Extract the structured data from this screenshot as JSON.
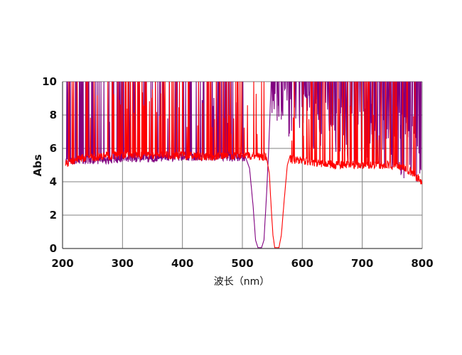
{
  "chart_data": {
    "type": "line",
    "xlabel": "波长（nm）",
    "ylabel": "Abs",
    "xlim": [
      200,
      800
    ],
    "ylim": [
      0,
      10
    ],
    "x_ticks": [
      "200",
      "300",
      "400",
      "500",
      "600",
      "700",
      "800"
    ],
    "y_ticks": [
      "0",
      "2",
      "4",
      "6",
      "8",
      "10"
    ],
    "grid": true,
    "series": [
      {
        "color": "#800080",
        "baseline": [
          [
            205,
            5.3
          ],
          [
            260,
            5.3
          ],
          [
            330,
            5.4
          ],
          [
            400,
            5.5
          ],
          [
            470,
            5.5
          ],
          [
            510,
            5.4
          ],
          [
            520,
            5.3
          ]
        ],
        "spike_ranges": [
          [
            205,
            520
          ],
          [
            555,
            800
          ]
        ],
        "dip": [
          [
            505,
            5.5
          ],
          [
            512,
            4.8
          ],
          [
            518,
            2.5
          ],
          [
            522,
            0.5
          ],
          [
            526,
            0.05
          ],
          [
            532,
            0.05
          ],
          [
            536,
            0.5
          ],
          [
            540,
            3.0
          ],
          [
            544,
            6.0
          ],
          [
            548,
            10
          ]
        ],
        "tail": [
          [
            560,
            9.0
          ],
          [
            600,
            8.0
          ],
          [
            650,
            7.5
          ],
          [
            700,
            7.0
          ],
          [
            760,
            6.5
          ],
          [
            800,
            5.0
          ]
        ]
      },
      {
        "color": "#ff0000",
        "baseline": [
          [
            200,
            5.0
          ],
          [
            230,
            5.4
          ],
          [
            300,
            5.6
          ],
          [
            380,
            5.6
          ],
          [
            450,
            5.5
          ],
          [
            500,
            5.6
          ],
          [
            540,
            5.5
          ],
          [
            660,
            5.0
          ],
          [
            700,
            5.0
          ],
          [
            760,
            5.0
          ],
          [
            780,
            4.6
          ],
          [
            800,
            4.0
          ]
        ],
        "spike_ranges": [
          [
            210,
            540
          ],
          [
            570,
            790
          ]
        ],
        "dip": [
          [
            540,
            5.5
          ],
          [
            545,
            4.5
          ],
          [
            548,
            2.5
          ],
          [
            551,
            0.8
          ],
          [
            554,
            0.05
          ],
          [
            561,
            0.05
          ],
          [
            565,
            0.8
          ],
          [
            570,
            3.0
          ],
          [
            575,
            5.0
          ],
          [
            580,
            5.6
          ]
        ],
        "tail": []
      }
    ]
  }
}
